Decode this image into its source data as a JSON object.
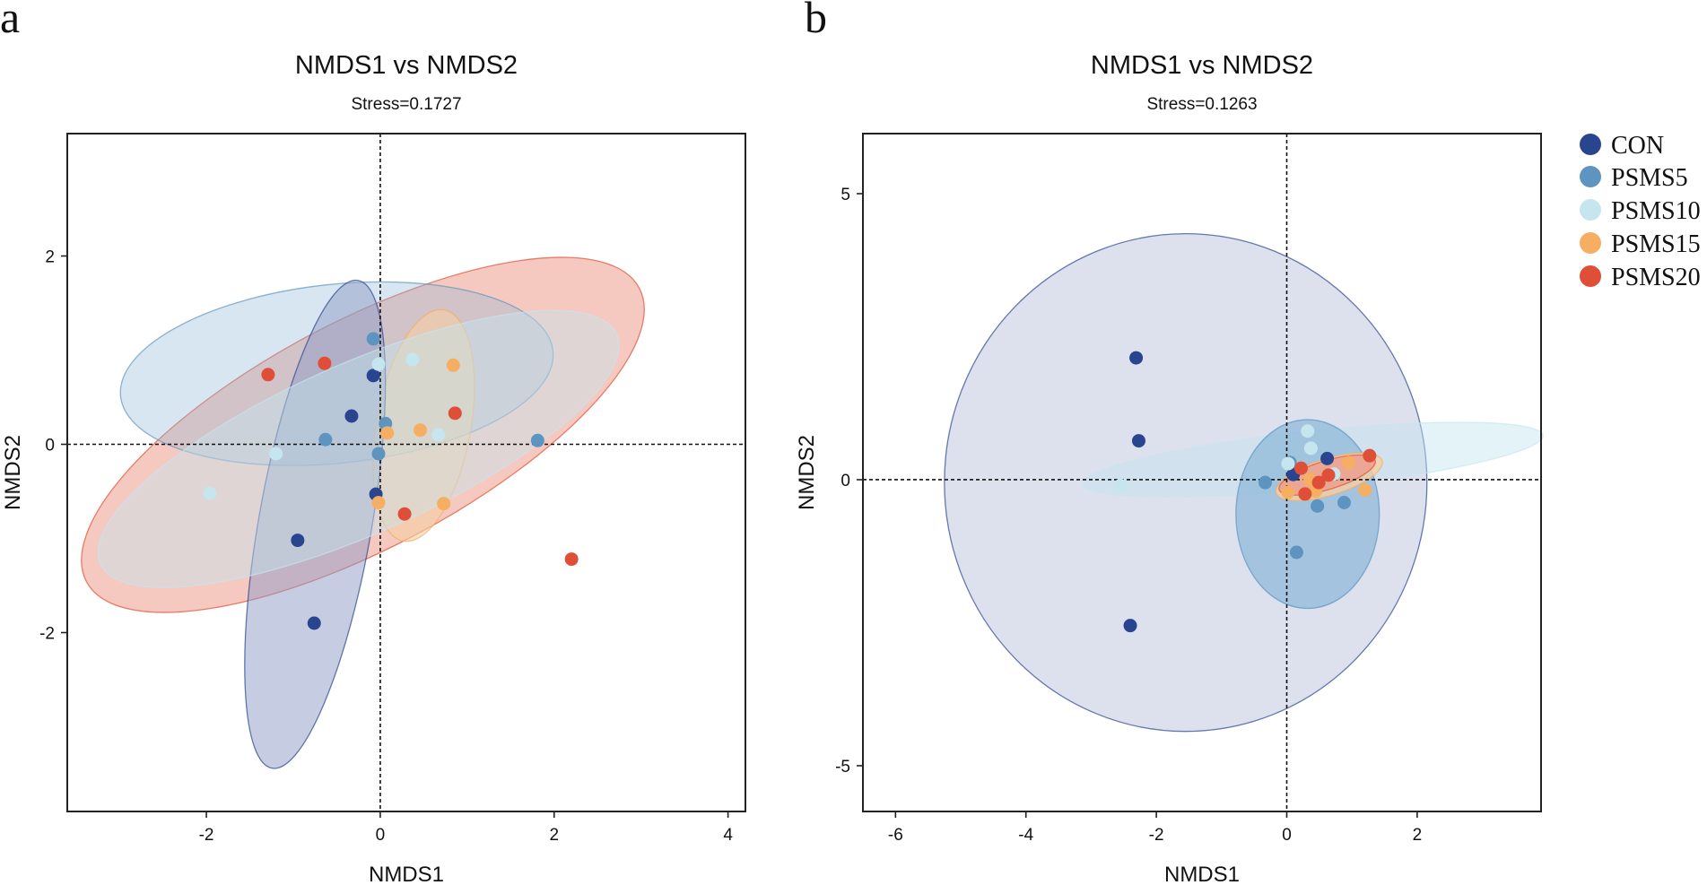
{
  "colors": {
    "CON": "#2a4590",
    "PSMS5": "#5d94c0",
    "PSMS10": "#c6e6ef",
    "PSMS15": "#f5ae62",
    "PSMS20": "#df4e36"
  },
  "fill_colors": {
    "CON": "#8d9bc6",
    "PSMS5": "#8fb8d8",
    "PSMS10": "#c3e5ee",
    "PSMS15": "#f6cfa3",
    "PSMS20": "#ee9c8d"
  },
  "legend": {
    "items": [
      {
        "name": "CON",
        "label": "CON"
      },
      {
        "name": "PSMS5",
        "label": "PSMS5"
      },
      {
        "name": "PSMS10",
        "label": "PSMS10"
      },
      {
        "name": "PSMS15",
        "label": "PSMS15"
      },
      {
        "name": "PSMS20",
        "label": "PSMS20"
      }
    ]
  },
  "chart_data": [
    {
      "panel": "a",
      "type": "scatter",
      "title": "NMDS1 vs NMDS2",
      "subtitle": "Stress=0.1727",
      "xlabel": "NMDS1",
      "ylabel": "NMDS2",
      "xlim": [
        -3.6,
        4.2
      ],
      "ylim": [
        -3.9,
        3.3
      ],
      "xticks": [
        -2,
        0,
        2,
        4
      ],
      "xtick_labels": [
        "-2",
        "0",
        "2",
        "4"
      ],
      "yticks": [
        -2,
        0,
        2
      ],
      "ytick_labels": [
        "-2",
        "0",
        "2"
      ],
      "ellipses": [
        {
          "group": "PSMS20",
          "cx": -0.2,
          "cy": 0.1,
          "rx": 3.6,
          "ry": 1.2,
          "angle": -28,
          "opacity": 0.55
        },
        {
          "group": "PSMS5",
          "cx": -0.5,
          "cy": 0.75,
          "rx": 2.5,
          "ry": 0.95,
          "angle": -6,
          "opacity": 0.35
        },
        {
          "group": "PSMS15",
          "cx": 0.5,
          "cy": 0.2,
          "rx": 1.35,
          "ry": 0.5,
          "angle": -80,
          "opacity": 0.6
        },
        {
          "group": "CON",
          "cx": -0.75,
          "cy": -0.85,
          "rx": 2.85,
          "ry": 0.6,
          "angle": -80,
          "opacity": 0.5
        },
        {
          "group": "PSMS10",
          "cx": -0.25,
          "cy": -0.05,
          "rx": 3.25,
          "ry": 0.9,
          "angle": -24,
          "opacity": 0.45
        }
      ],
      "series": [
        {
          "name": "CON",
          "points": [
            [
              -0.95,
              -1.02
            ],
            [
              -0.76,
              -1.9
            ],
            [
              -0.08,
              0.73
            ],
            [
              -0.33,
              0.3
            ],
            [
              -0.05,
              -0.53
            ]
          ]
        },
        {
          "name": "PSMS5",
          "points": [
            [
              -0.08,
              1.12
            ],
            [
              -0.63,
              0.05
            ],
            [
              0.06,
              0.22
            ],
            [
              -0.02,
              -0.1
            ],
            [
              1.81,
              0.04
            ]
          ]
        },
        {
          "name": "PSMS10",
          "points": [
            [
              -1.96,
              -0.52
            ],
            [
              -1.2,
              -0.1
            ],
            [
              -0.02,
              0.85
            ],
            [
              0.37,
              0.9
            ],
            [
              0.67,
              0.1
            ]
          ]
        },
        {
          "name": "PSMS15",
          "points": [
            [
              0.08,
              0.12
            ],
            [
              0.46,
              0.15
            ],
            [
              0.84,
              0.84
            ],
            [
              -0.02,
              -0.62
            ],
            [
              0.73,
              -0.63
            ]
          ]
        },
        {
          "name": "PSMS20",
          "points": [
            [
              -1.29,
              0.74
            ],
            [
              -0.64,
              0.86
            ],
            [
              0.86,
              0.33
            ],
            [
              0.28,
              -0.74
            ],
            [
              2.2,
              -1.22
            ]
          ]
        }
      ]
    },
    {
      "panel": "b",
      "type": "scatter",
      "title": "NMDS1 vs NMDS2",
      "subtitle": "Stress=0.1263",
      "xlabel": "NMDS1",
      "ylabel": "NMDS2",
      "xlim": [
        -6.5,
        3.9
      ],
      "ylim": [
        -5.8,
        6.05
      ],
      "xticks": [
        -6,
        -4,
        -2,
        0,
        2
      ],
      "xtick_labels": [
        "-6",
        "-4",
        "-2",
        "0",
        "2"
      ],
      "yticks": [
        -5,
        0,
        5
      ],
      "ytick_labels": [
        "-5",
        "0",
        "5"
      ],
      "ellipses": [
        {
          "group": "CON",
          "cx": -1.55,
          "cy": -0.05,
          "rx": 3.7,
          "ry": 4.35,
          "angle": 0,
          "opacity": 0.3
        },
        {
          "group": "PSMS10",
          "cx": 0.4,
          "cy": 0.35,
          "rx": 3.55,
          "ry": 0.5,
          "angle": -6,
          "opacity": 0.45
        },
        {
          "group": "PSMS5",
          "cx": 0.32,
          "cy": -0.6,
          "rx": 1.1,
          "ry": 1.65,
          "angle": 0,
          "opacity": 0.75
        },
        {
          "group": "PSMS15",
          "cx": 0.65,
          "cy": 0.05,
          "rx": 0.85,
          "ry": 0.32,
          "angle": -17,
          "opacity": 0.8
        },
        {
          "group": "PSMS20",
          "cx": 0.62,
          "cy": 0.08,
          "rx": 0.77,
          "ry": 0.25,
          "angle": -17,
          "opacity": 0.8
        }
      ],
      "series": [
        {
          "name": "CON",
          "points": [
            [
              -2.31,
              2.13
            ],
            [
              -2.27,
              0.68
            ],
            [
              -2.4,
              -2.55
            ],
            [
              0.1,
              0.09
            ],
            [
              0.62,
              0.37
            ]
          ]
        },
        {
          "name": "PSMS5",
          "points": [
            [
              -0.33,
              -0.05
            ],
            [
              0.15,
              -1.27
            ],
            [
              0.47,
              -0.46
            ],
            [
              0.88,
              -0.4
            ],
            [
              0.05,
              0.3
            ]
          ]
        },
        {
          "name": "PSMS10",
          "points": [
            [
              -2.55,
              -0.1
            ],
            [
              0.02,
              0.28
            ],
            [
              0.37,
              0.55
            ],
            [
              0.32,
              0.85
            ],
            [
              0.72,
              0.1
            ]
          ]
        },
        {
          "name": "PSMS15",
          "points": [
            [
              0.02,
              -0.22
            ],
            [
              0.44,
              -0.2
            ],
            [
              0.95,
              0.3
            ],
            [
              1.2,
              -0.18
            ],
            [
              0.35,
              0.0
            ]
          ]
        },
        {
          "name": "PSMS20",
          "points": [
            [
              0.22,
              0.2
            ],
            [
              0.28,
              -0.25
            ],
            [
              0.49,
              -0.05
            ],
            [
              0.64,
              0.08
            ],
            [
              1.27,
              0.42
            ]
          ]
        }
      ]
    }
  ]
}
